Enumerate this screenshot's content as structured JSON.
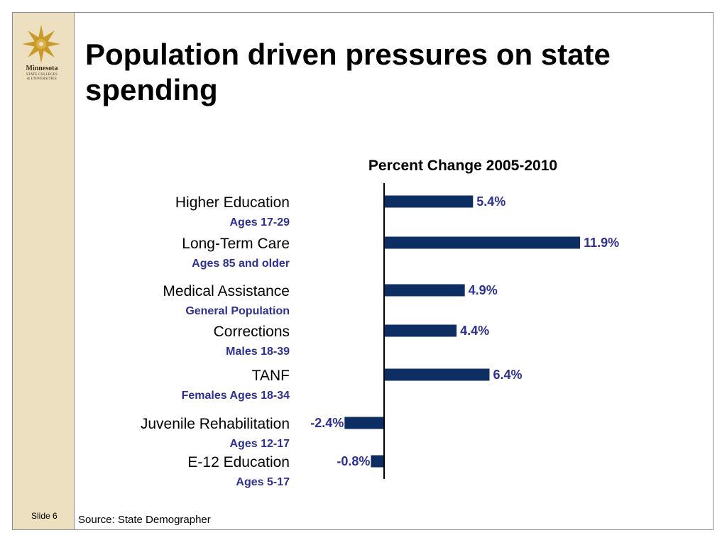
{
  "slide": {
    "title": "Population driven pressures on state spending",
    "number_label": "Slide 6",
    "source": "Source: State Demographer"
  },
  "logo": {
    "name": "Minnesota",
    "sub1": "STATE COLLEGES",
    "sub2": "& UNIVERSITIES"
  },
  "colors": {
    "bar": "#0d2e63",
    "value_label": "#2e3192",
    "sub_label": "#2e3192",
    "sidebar": "#ede0c0"
  },
  "chart_data": {
    "type": "bar",
    "orientation": "horizontal",
    "title": "Percent  Change 2005-2010",
    "categories": [
      "Higher Education",
      "Long-Term Care",
      "Medical Assistance",
      "Corrections",
      "TANF",
      "Juvenile Rehabilitation",
      "E-12 Education"
    ],
    "sublabels": [
      "Ages 17-29",
      "Ages 85 and older",
      "General Population",
      "Males 18-39",
      "Females Ages 18-34",
      "Ages 12-17",
      "Ages 5-17"
    ],
    "values": [
      5.4,
      11.9,
      4.9,
      4.4,
      6.4,
      -2.4,
      -0.8
    ],
    "value_labels": [
      "5.4%",
      "11.9%",
      "4.9%",
      "4.4%",
      "6.4%",
      "-2.4%",
      "-0.8%"
    ],
    "grid": false,
    "legend": "none"
  }
}
